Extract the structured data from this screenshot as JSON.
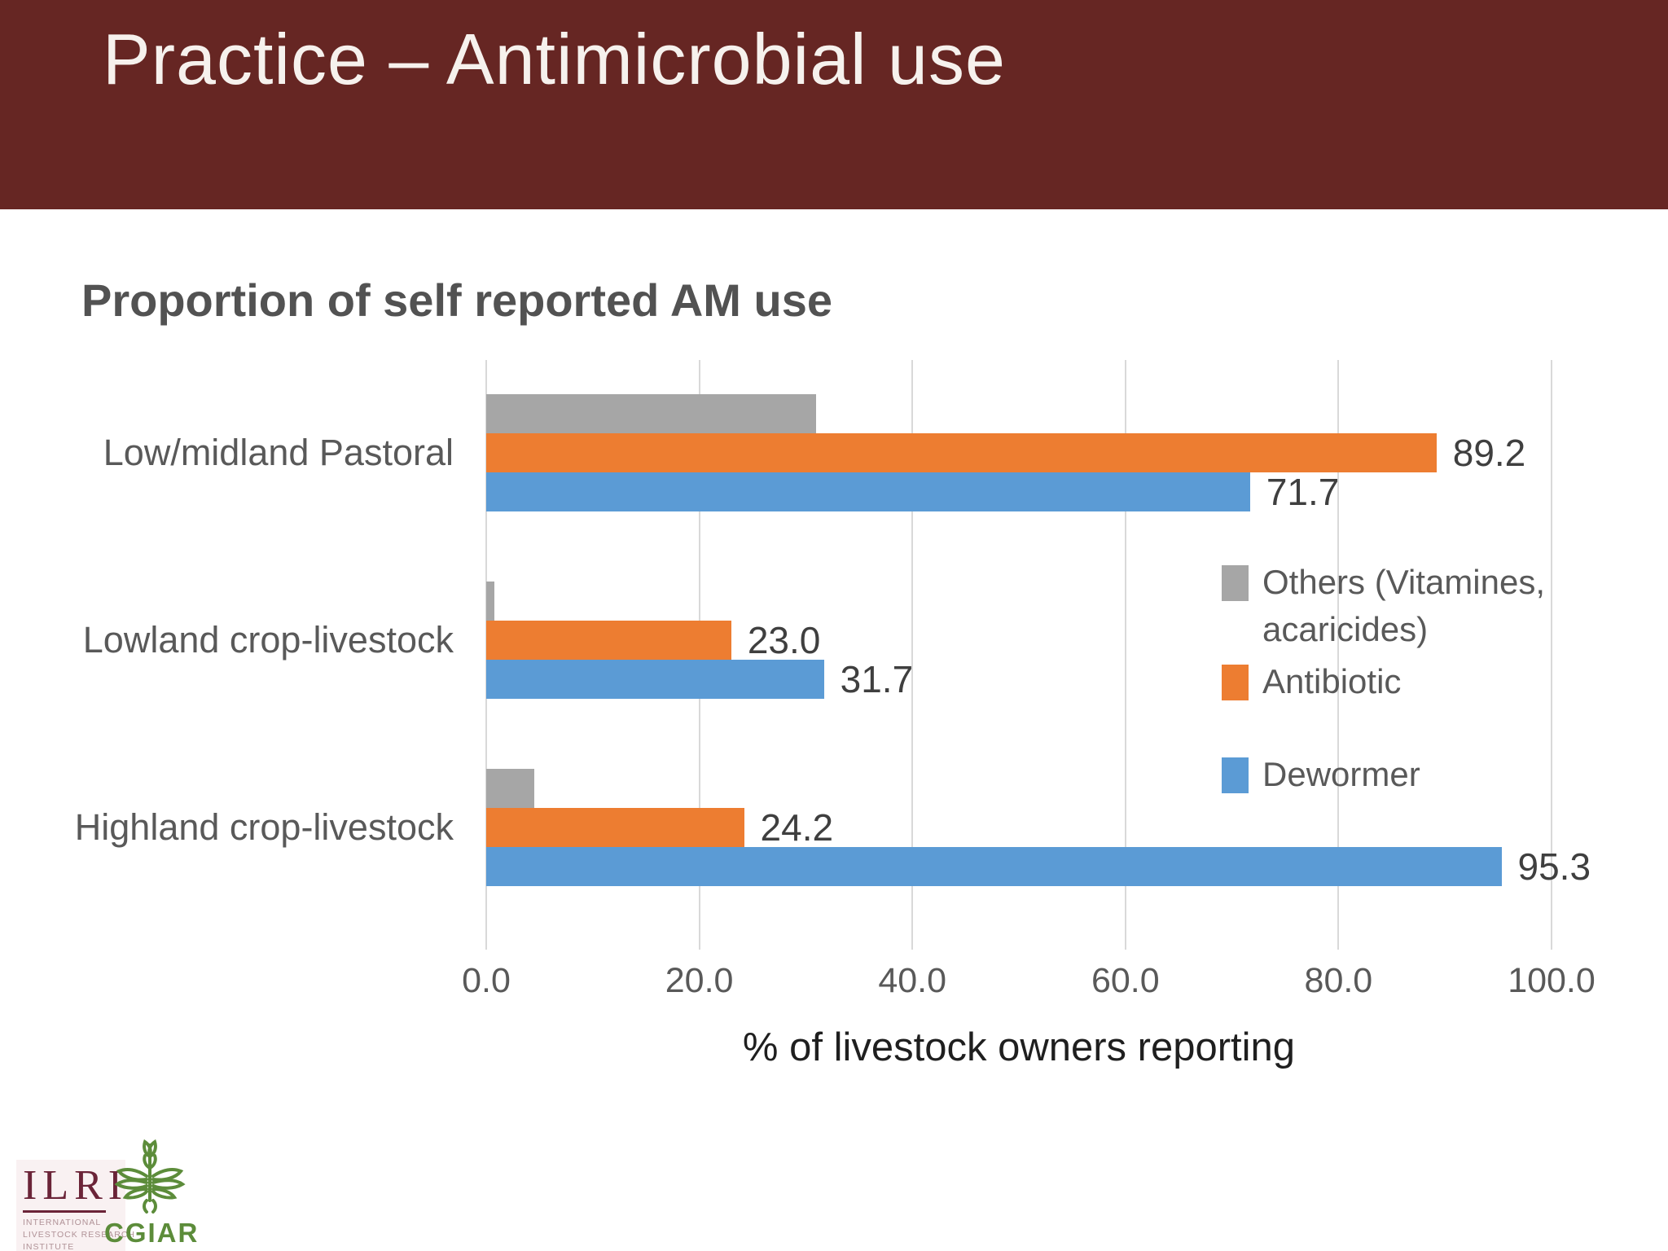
{
  "slide": {
    "title": "Practice – Antimicrobial use"
  },
  "colors": {
    "header_bg": "#662623",
    "gridline": "#d9d9d9",
    "series_others": "#a6a6a6",
    "series_antibiotic": "#ed7d31",
    "series_dewormer": "#5b9bd5",
    "text_gray": "#595959"
  },
  "chart_data": {
    "type": "bar",
    "orientation": "horizontal",
    "title": "Proportion of self reported AM use",
    "xlabel": "% of livestock owners reporting",
    "categories": [
      "Low/midland Pastoral",
      "Lowland crop-livestock",
      "Highland crop-livestock"
    ],
    "series": [
      {
        "name": "Others (Vitamines, acaricides)",
        "color": "#a6a6a6",
        "values": [
          31.0,
          0.8,
          4.5
        ],
        "data_labels": null
      },
      {
        "name": "Antibiotic",
        "color": "#ed7d31",
        "values": [
          89.2,
          23.0,
          24.2
        ],
        "data_labels": [
          "89.2",
          "23.0",
          "24.2"
        ]
      },
      {
        "name": "Dewormer",
        "color": "#5b9bd5",
        "values": [
          71.7,
          31.7,
          95.3
        ],
        "data_labels": [
          "71.7",
          "31.7",
          "95.3"
        ]
      }
    ],
    "xlim": [
      0,
      100
    ],
    "xticks": [
      {
        "value": 0,
        "label": "0.0"
      },
      {
        "value": 20,
        "label": "20.0"
      },
      {
        "value": 40,
        "label": "40.0"
      },
      {
        "value": 60,
        "label": "60.0"
      },
      {
        "value": 80,
        "label": "80.0"
      },
      {
        "value": 100,
        "label": "100.0"
      }
    ],
    "grid": true,
    "legend_position": "right-center"
  },
  "logos": {
    "ilri": {
      "name": "ILRI",
      "lines": [
        "INTERNATIONAL",
        "LIVESTOCK RESEARCH",
        "INSTITUTE"
      ],
      "color": "#6b2438"
    },
    "cgiar": {
      "name": "CGIAR",
      "color": "#5c8c3a"
    }
  }
}
